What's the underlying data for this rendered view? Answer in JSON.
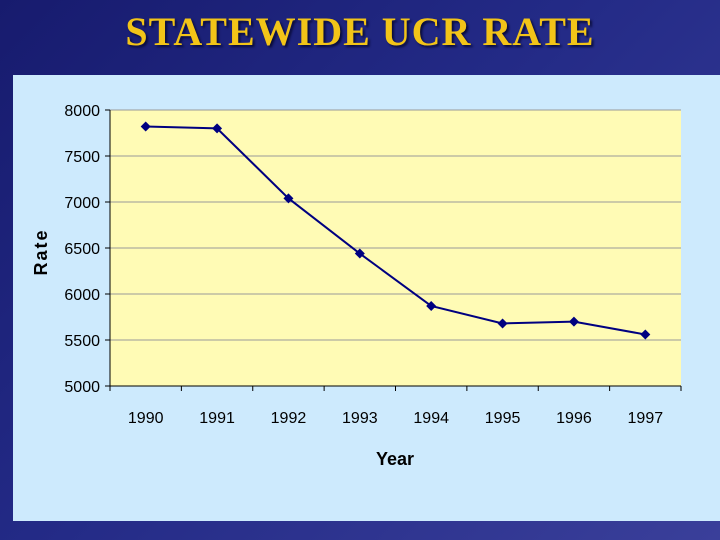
{
  "slide": {
    "title": "STATEWIDE UCR RATE"
  },
  "chart_data": {
    "type": "line",
    "title": "STATEWIDE UCR RATE",
    "xlabel": "Year",
    "ylabel": "Rate",
    "categories": [
      "1990",
      "1991",
      "1992",
      "1993",
      "1994",
      "1995",
      "1996",
      "1997"
    ],
    "series": [
      {
        "values": [
          7820,
          7800,
          7040,
          6440,
          5870,
          5680,
          5700,
          5560
        ]
      }
    ],
    "ylim": [
      5000,
      8000
    ],
    "yticks": [
      5000,
      5500,
      6000,
      6500,
      7000,
      7500,
      8000
    ],
    "grid": true,
    "legend": "none",
    "colors": {
      "line": "#000080",
      "plot_bg": "#fffbb5",
      "panel_bg": "#cdeafd",
      "grid": "#999999"
    }
  }
}
